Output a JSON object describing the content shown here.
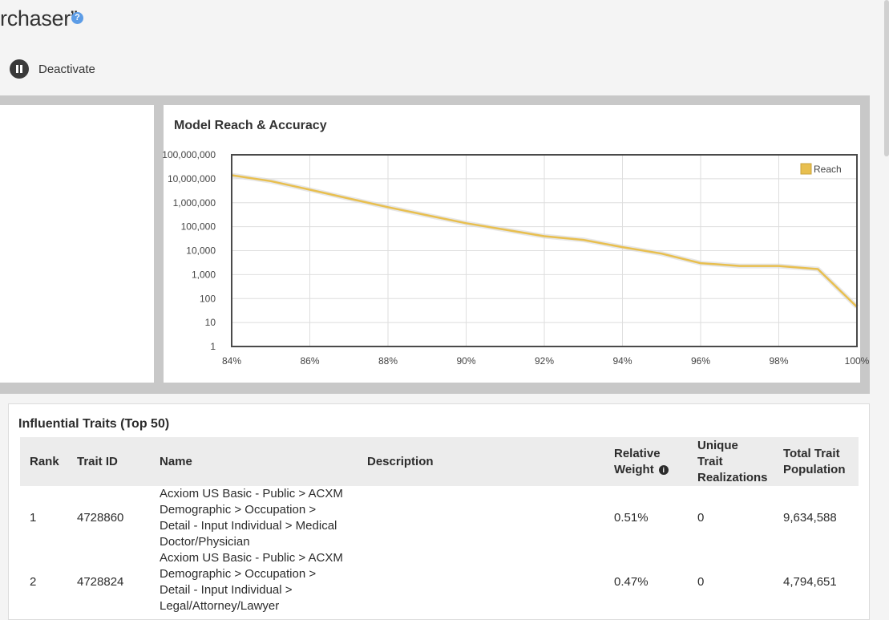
{
  "page": {
    "title": "rchaser”",
    "help_icon": "question-icon",
    "help_glyph": "?"
  },
  "toolbar": {
    "deactivate_label": "Deactivate",
    "deactivate_icon": "pause-icon"
  },
  "chart": {
    "title": "Model Reach & Accuracy",
    "legend": "Reach",
    "line_color": "#e8bf4f",
    "y_ticks": [
      "100,000,000",
      "10,000,000",
      "1,000,000",
      "100,000",
      "10,000",
      "1,000",
      "100",
      "10",
      "1"
    ],
    "x_ticks": [
      "84%",
      "86%",
      "88%",
      "90%",
      "92%",
      "94%",
      "96%",
      "98%",
      "100%"
    ]
  },
  "chart_data": {
    "type": "line",
    "title": "Model Reach & Accuracy",
    "xlabel": "",
    "ylabel": "",
    "yscale": "log",
    "xlim": [
      84,
      100
    ],
    "ylim": [
      1,
      100000000
    ],
    "grid": true,
    "legend_position": "top-right",
    "series": [
      {
        "name": "Reach",
        "color": "#e8bf4f",
        "x": [
          84,
          85,
          86,
          87,
          88,
          89,
          90,
          91,
          92,
          93,
          94,
          95,
          96,
          97,
          98,
          99,
          100
        ],
        "y": [
          14000000,
          8000000,
          3500000,
          1500000,
          650000,
          300000,
          140000,
          75000,
          40000,
          28000,
          14000,
          7500,
          3000,
          2300,
          2300,
          1700,
          45
        ]
      }
    ]
  },
  "traits": {
    "title": "Influential Traits (Top 50)",
    "headers": {
      "rank": "Rank",
      "trait_id": "Trait ID",
      "name": "Name",
      "description": "Description",
      "weight_line1": "Relative",
      "weight_line2": "Weight",
      "unique_line1": "Unique",
      "unique_line2": "Trait",
      "unique_line3": "Realizations",
      "total_line1": "Total Trait",
      "total_line2": "Population"
    },
    "rows": [
      {
        "rank": "1",
        "trait_id": "4728860",
        "name_lines": [
          "Acxiom US Basic - Public > ACXM",
          "Demographic > Occupation >",
          "Detail - Input Individual > Medical",
          "Doctor/Physician"
        ],
        "description": "",
        "weight": "0.51%",
        "unique": "0",
        "total": "9,634,588"
      },
      {
        "rank": "2",
        "trait_id": "4728824",
        "name_lines": [
          "Acxiom US Basic - Public > ACXM",
          "Demographic > Occupation >",
          "Detail - Input Individual >",
          "Legal/Attorney/Lawyer"
        ],
        "description": "",
        "weight": "0.47%",
        "unique": "0",
        "total": "4,794,651"
      }
    ]
  }
}
